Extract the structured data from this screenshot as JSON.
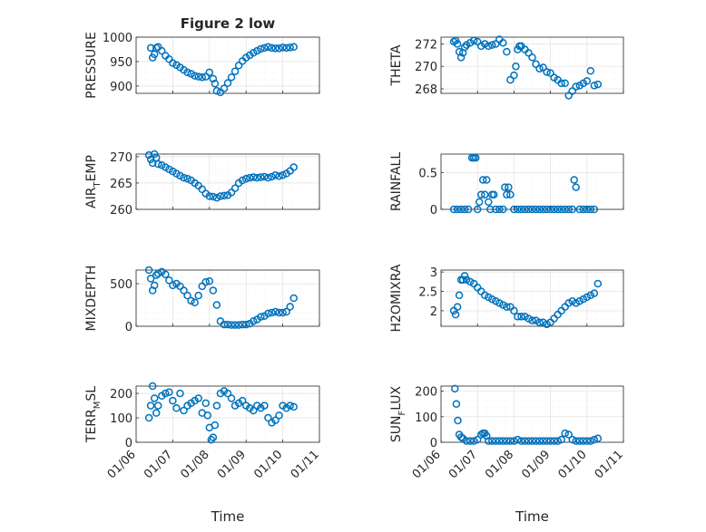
{
  "figure": {
    "title": "Figure 2 low",
    "series_color": "#0072BD",
    "marker": "circle",
    "x_axis_label": "Time",
    "x_ticks": [
      "01/06",
      "01/07",
      "01/08",
      "01/09",
      "01/10",
      "01/11"
    ]
  },
  "chart_data": [
    {
      "type": "scatter",
      "id": "pressure",
      "ylabel": "PRESSURE",
      "grid": true,
      "xlim": [
        0,
        5
      ],
      "ylim": [
        885,
        1000
      ],
      "yticks": [
        900,
        950,
        1000
      ],
      "x": [
        0.4,
        0.45,
        0.5,
        0.55,
        0.6,
        0.7,
        0.8,
        0.9,
        1.0,
        1.1,
        1.2,
        1.3,
        1.4,
        1.5,
        1.6,
        1.7,
        1.8,
        1.9,
        2.0,
        2.1,
        2.15,
        2.2,
        2.3,
        2.4,
        2.5,
        2.6,
        2.7,
        2.8,
        2.9,
        3.0,
        3.1,
        3.2,
        3.3,
        3.4,
        3.5,
        3.6,
        3.7,
        3.8,
        3.9,
        4.0,
        4.1,
        4.2,
        4.3
      ],
      "y": [
        978,
        958,
        965,
        978,
        980,
        972,
        962,
        955,
        947,
        943,
        938,
        933,
        928,
        925,
        921,
        919,
        918,
        919,
        928,
        915,
        905,
        890,
        887,
        895,
        906,
        918,
        930,
        942,
        951,
        958,
        963,
        968,
        972,
        976,
        978,
        980,
        978,
        977,
        977,
        979,
        978,
        979,
        980
      ]
    },
    {
      "type": "scatter",
      "id": "theta",
      "ylabel": "THETA",
      "grid": true,
      "xlim": [
        0,
        5
      ],
      "ylim": [
        267.6,
        272.6
      ],
      "yticks": [
        268,
        270,
        272
      ],
      "x": [
        0.35,
        0.4,
        0.45,
        0.5,
        0.55,
        0.6,
        0.65,
        0.7,
        0.8,
        0.9,
        1.0,
        1.1,
        1.2,
        1.3,
        1.4,
        1.5,
        1.6,
        1.7,
        1.8,
        1.9,
        2.0,
        2.05,
        2.1,
        2.15,
        2.2,
        2.3,
        2.4,
        2.5,
        2.6,
        2.7,
        2.8,
        2.9,
        3.0,
        3.1,
        3.2,
        3.3,
        3.4,
        3.5,
        3.6,
        3.7,
        3.8,
        3.9,
        4.0,
        4.1,
        4.2,
        4.3
      ],
      "y": [
        272.2,
        272.3,
        272.0,
        271.3,
        270.8,
        271.2,
        271.7,
        271.9,
        272.1,
        272.3,
        272.2,
        271.8,
        272.0,
        271.8,
        271.9,
        272.0,
        272.4,
        272.1,
        271.3,
        268.8,
        269.2,
        270.0,
        271.5,
        271.8,
        271.8,
        271.5,
        271.2,
        270.8,
        270.2,
        269.8,
        269.9,
        269.5,
        269.4,
        269.0,
        268.8,
        268.5,
        268.5,
        267.4,
        267.8,
        268.2,
        268.3,
        268.5,
        268.7,
        269.6,
        268.3,
        268.4
      ]
    },
    {
      "type": "scatter",
      "id": "air_temp",
      "ylabel": "AIR_TEMP",
      "ylabel_main": "AIR",
      "ylabel_sub": "T",
      "ylabel_rest": "EMP",
      "grid": true,
      "xlim": [
        0,
        5
      ],
      "ylim": [
        260,
        270.5
      ],
      "yticks": [
        260,
        265,
        270
      ],
      "x": [
        0.35,
        0.4,
        0.45,
        0.5,
        0.55,
        0.6,
        0.7,
        0.8,
        0.9,
        1.0,
        1.1,
        1.2,
        1.3,
        1.4,
        1.5,
        1.6,
        1.7,
        1.8,
        1.9,
        2.0,
        2.1,
        2.2,
        2.3,
        2.4,
        2.5,
        2.6,
        2.7,
        2.8,
        2.9,
        3.0,
        3.1,
        3.2,
        3.3,
        3.4,
        3.5,
        3.6,
        3.7,
        3.8,
        3.9,
        4.0,
        4.1,
        4.2,
        4.3
      ],
      "y": [
        270.3,
        269.5,
        268.8,
        270.5,
        269.8,
        268.6,
        268.4,
        268.0,
        267.6,
        267.2,
        266.8,
        266.4,
        266.0,
        265.8,
        265.5,
        265.0,
        264.5,
        263.8,
        263.0,
        262.5,
        262.4,
        262.2,
        262.5,
        262.6,
        262.7,
        263.2,
        264.0,
        265.0,
        265.5,
        265.8,
        266.0,
        266.1,
        266.0,
        266.1,
        266.2,
        266.0,
        266.2,
        266.5,
        266.3,
        266.5,
        266.8,
        267.3,
        268.0
      ]
    },
    {
      "type": "scatter",
      "id": "rainfall",
      "ylabel": "RAINFALL",
      "grid": true,
      "xlim": [
        0,
        5
      ],
      "ylim": [
        0,
        0.75
      ],
      "yticks": [
        0,
        0.5
      ],
      "x": [
        0.35,
        0.45,
        0.55,
        0.65,
        0.75,
        0.85,
        0.9,
        0.95,
        1.0,
        1.05,
        1.1,
        1.15,
        1.2,
        1.25,
        1.3,
        1.35,
        1.4,
        1.45,
        1.5,
        1.6,
        1.7,
        1.75,
        1.8,
        1.85,
        1.9,
        2.0,
        2.1,
        2.2,
        2.3,
        2.4,
        2.5,
        2.6,
        2.7,
        2.8,
        2.9,
        3.0,
        3.1,
        3.2,
        3.3,
        3.4,
        3.5,
        3.6,
        3.65,
        3.7,
        3.8,
        3.9,
        4.0,
        4.1,
        4.2
      ],
      "y": [
        0,
        0,
        0,
        0,
        0,
        0.7,
        0.7,
        0.7,
        0,
        0.1,
        0.2,
        0.4,
        0.2,
        0.4,
        0.1,
        0,
        0.2,
        0.2,
        0,
        0,
        0,
        0.3,
        0.2,
        0.3,
        0.2,
        0,
        0,
        0,
        0,
        0,
        0,
        0,
        0,
        0,
        0,
        0,
        0,
        0,
        0,
        0,
        0,
        0,
        0.4,
        0.3,
        0,
        0,
        0,
        0,
        0
      ]
    },
    {
      "type": "scatter",
      "id": "mixdepth",
      "ylabel": "MIXDEPTH",
      "grid": true,
      "xlim": [
        0,
        5
      ],
      "ylim": [
        0,
        660
      ],
      "yticks": [
        0,
        500
      ],
      "x": [
        0.35,
        0.4,
        0.45,
        0.5,
        0.55,
        0.6,
        0.7,
        0.8,
        0.9,
        1.0,
        1.1,
        1.2,
        1.3,
        1.4,
        1.5,
        1.6,
        1.7,
        1.8,
        1.9,
        2.0,
        2.1,
        2.2,
        2.3,
        2.4,
        2.5,
        2.6,
        2.7,
        2.8,
        2.9,
        3.0,
        3.1,
        3.2,
        3.3,
        3.4,
        3.5,
        3.6,
        3.7,
        3.8,
        3.9,
        4.0,
        4.1,
        4.2,
        4.3
      ],
      "y": [
        660,
        560,
        420,
        480,
        600,
        620,
        640,
        610,
        540,
        480,
        500,
        470,
        420,
        360,
        300,
        280,
        360,
        470,
        520,
        530,
        420,
        250,
        60,
        20,
        20,
        15,
        15,
        15,
        20,
        20,
        30,
        60,
        80,
        110,
        120,
        150,
        160,
        170,
        160,
        160,
        170,
        230,
        330
      ]
    },
    {
      "type": "scatter",
      "id": "h2omixra",
      "ylabel": "H2OMIXRA",
      "grid": true,
      "xlim": [
        0,
        5
      ],
      "ylim": [
        1.6,
        3.05
      ],
      "yticks": [
        2,
        2.5,
        3
      ],
      "x": [
        0.35,
        0.4,
        0.45,
        0.5,
        0.55,
        0.6,
        0.65,
        0.7,
        0.8,
        0.9,
        1.0,
        1.1,
        1.2,
        1.3,
        1.4,
        1.5,
        1.6,
        1.7,
        1.8,
        1.9,
        2.0,
        2.1,
        2.2,
        2.3,
        2.4,
        2.5,
        2.6,
        2.7,
        2.8,
        2.9,
        3.0,
        3.1,
        3.2,
        3.3,
        3.4,
        3.5,
        3.6,
        3.7,
        3.8,
        3.9,
        4.0,
        4.1,
        4.2,
        4.3
      ],
      "y": [
        2.0,
        1.9,
        2.1,
        2.4,
        2.8,
        2.8,
        2.9,
        2.8,
        2.75,
        2.7,
        2.6,
        2.5,
        2.4,
        2.35,
        2.3,
        2.25,
        2.2,
        2.15,
        2.1,
        2.1,
        2.0,
        1.85,
        1.85,
        1.85,
        1.8,
        1.75,
        1.75,
        1.7,
        1.7,
        1.65,
        1.7,
        1.8,
        1.9,
        2.0,
        2.1,
        2.2,
        2.25,
        2.2,
        2.25,
        2.3,
        2.35,
        2.4,
        2.45,
        2.7
      ]
    },
    {
      "type": "scatter",
      "id": "terr_msl",
      "ylabel": "TERR_MSL",
      "ylabel_main": "TERR",
      "ylabel_sub": "M",
      "ylabel_rest": "SL",
      "grid": true,
      "xlim": [
        0,
        5
      ],
      "ylim": [
        0,
        230
      ],
      "yticks": [
        0,
        100,
        200
      ],
      "x": [
        0.35,
        0.4,
        0.45,
        0.5,
        0.55,
        0.6,
        0.7,
        0.8,
        0.9,
        1.0,
        1.1,
        1.2,
        1.3,
        1.4,
        1.5,
        1.6,
        1.7,
        1.8,
        1.9,
        1.95,
        2.0,
        2.05,
        2.1,
        2.15,
        2.2,
        2.3,
        2.4,
        2.5,
        2.6,
        2.7,
        2.8,
        2.9,
        3.0,
        3.1,
        3.2,
        3.3,
        3.4,
        3.5,
        3.6,
        3.7,
        3.8,
        3.9,
        4.0,
        4.1,
        4.2,
        4.3
      ],
      "y": [
        100,
        150,
        230,
        180,
        120,
        150,
        190,
        200,
        205,
        170,
        140,
        200,
        130,
        150,
        160,
        170,
        180,
        120,
        160,
        110,
        60,
        10,
        20,
        70,
        150,
        200,
        210,
        200,
        180,
        150,
        160,
        170,
        150,
        140,
        130,
        150,
        140,
        150,
        100,
        80,
        90,
        110,
        150,
        140,
        150,
        145
      ]
    },
    {
      "type": "scatter",
      "id": "sun_flux",
      "ylabel": "SUN_FLUX",
      "ylabel_main": "SUN",
      "ylabel_sub": "F",
      "ylabel_rest": "LUX",
      "grid": true,
      "xlim": [
        0,
        5
      ],
      "ylim": [
        0,
        220
      ],
      "yticks": [
        0,
        100,
        200
      ],
      "x": [
        0.38,
        0.42,
        0.46,
        0.5,
        0.55,
        0.6,
        0.7,
        0.8,
        0.9,
        1.0,
        1.1,
        1.15,
        1.2,
        1.25,
        1.3,
        1.4,
        1.5,
        1.6,
        1.7,
        1.8,
        1.9,
        2.0,
        2.1,
        2.2,
        2.3,
        2.4,
        2.5,
        2.6,
        2.7,
        2.8,
        2.9,
        3.0,
        3.1,
        3.2,
        3.3,
        3.4,
        3.5,
        3.6,
        3.7,
        3.8,
        3.9,
        4.0,
        4.1,
        4.2,
        4.3
      ],
      "y": [
        210,
        150,
        85,
        30,
        20,
        15,
        5,
        5,
        5,
        10,
        30,
        35,
        35,
        25,
        5,
        5,
        5,
        5,
        5,
        5,
        5,
        5,
        10,
        5,
        5,
        5,
        5,
        5,
        5,
        5,
        5,
        5,
        5,
        5,
        10,
        35,
        30,
        10,
        5,
        5,
        5,
        5,
        5,
        10,
        15
      ]
    }
  ]
}
